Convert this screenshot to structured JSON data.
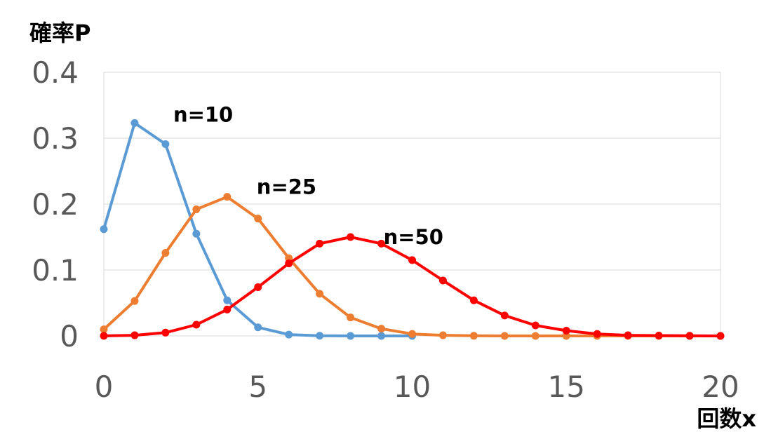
{
  "chart_data": {
    "type": "line",
    "title": "",
    "ylabel": "確率P",
    "xlabel": "回数x",
    "xlim": [
      0,
      20
    ],
    "ylim": [
      0,
      0.4
    ],
    "x_ticks": [
      0,
      5,
      10,
      15,
      20
    ],
    "x_tick_labels": [
      "0",
      "5",
      "10",
      "15",
      "20"
    ],
    "y_ticks": [
      0,
      0.1,
      0.2,
      0.3,
      0.4
    ],
    "y_tick_labels": [
      "0",
      "0.1",
      "0.2",
      "0.3",
      "0.4"
    ],
    "grid": true,
    "legend": "inline labels",
    "series": [
      {
        "name": "n=10",
        "color": "#5b9bd5",
        "x": [
          0,
          1,
          2,
          3,
          4,
          5,
          6,
          7,
          8,
          9,
          10
        ],
        "y": [
          0.162,
          0.323,
          0.291,
          0.155,
          0.054,
          0.013,
          0.002,
          0.0003,
          3e-05,
          2e-06,
          1e-07
        ]
      },
      {
        "name": "n=25",
        "color": "#ed7d31",
        "x": [
          0,
          1,
          2,
          3,
          4,
          5,
          6,
          7,
          8,
          9,
          10,
          11,
          12,
          13,
          14,
          15,
          16,
          17,
          18,
          19,
          20
        ],
        "y": [
          0.01,
          0.053,
          0.126,
          0.192,
          0.211,
          0.178,
          0.118,
          0.064,
          0.028,
          0.011,
          0.003,
          0.001,
          0.0002,
          4e-05,
          6e-06,
          0,
          0,
          0,
          0,
          0,
          0
        ]
      },
      {
        "name": "n=50",
        "color": "#ff0000",
        "x": [
          0,
          1,
          2,
          3,
          4,
          5,
          6,
          7,
          8,
          9,
          10,
          11,
          12,
          13,
          14,
          15,
          16,
          17,
          18,
          19,
          20
        ],
        "y": [
          0.0001,
          0.001,
          0.005,
          0.017,
          0.04,
          0.074,
          0.11,
          0.14,
          0.15,
          0.14,
          0.115,
          0.084,
          0.054,
          0.031,
          0.016,
          0.008,
          0.003,
          0.001,
          0.0005,
          0.0002,
          5e-05
        ]
      }
    ],
    "colors": {
      "grid": "#d9d9d9",
      "tick_text": "#595959",
      "label_text": "#000000"
    }
  }
}
